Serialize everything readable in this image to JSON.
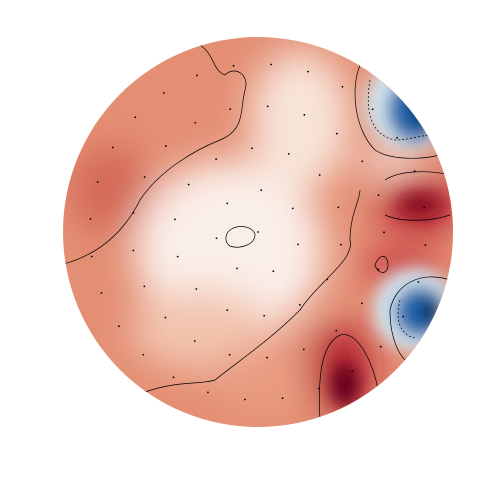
{
  "chart_data": {
    "type": "topomap"
  }
}
